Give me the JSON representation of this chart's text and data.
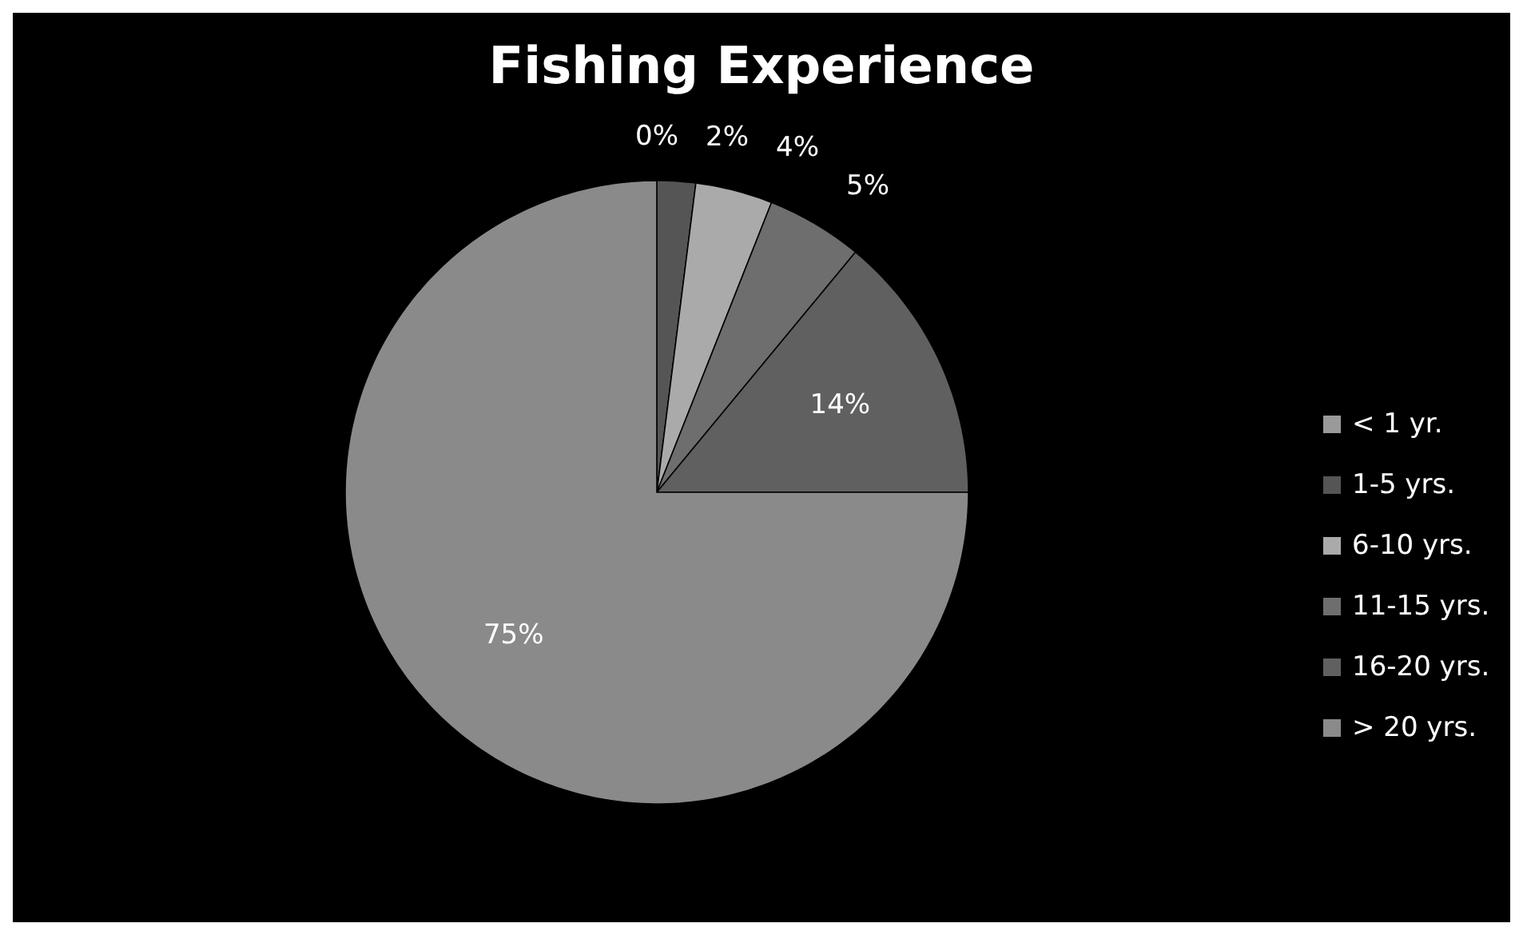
{
  "chart_data": {
    "type": "pie",
    "title": "Fishing Experience",
    "categories": [
      "< 1 yr.",
      "1-5 yrs.",
      "6-10 yrs.",
      "11-15 yrs.",
      "16-20 yrs.",
      "> 20 yrs."
    ],
    "values": [
      0,
      2,
      4,
      5,
      14,
      75
    ],
    "value_labels": [
      "0%",
      "2%",
      "4%",
      "5%",
      "14%",
      "75%"
    ],
    "colors": [
      "#9a9a9a",
      "#555555",
      "#aaaaaa",
      "#6e6e6e",
      "#606060",
      "#8a8a8a"
    ],
    "legend": "right"
  }
}
